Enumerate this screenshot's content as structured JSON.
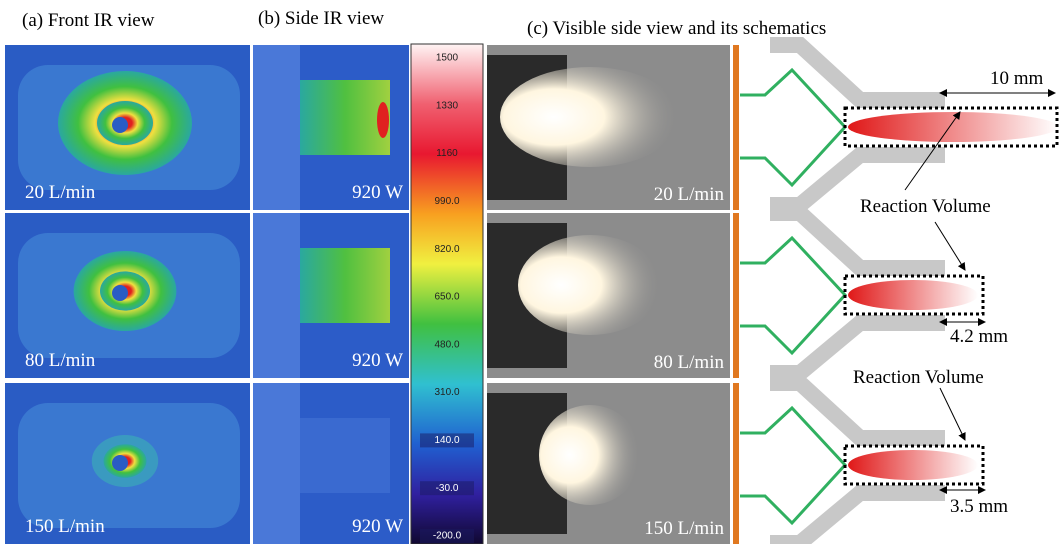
{
  "panels": [
    {
      "title": "(a) Front IR view"
    },
    {
      "title": "(b) Side IR view"
    },
    {
      "title": "(c) Visible side view and its schematics"
    }
  ],
  "front_labels": [
    "20 L/min",
    "80 L/min",
    "150 L/min"
  ],
  "side_labels": [
    "920 W",
    "920 W",
    "920 W"
  ],
  "colorbar_labels": [
    "1500",
    "1330",
    "1160",
    "990.0",
    "820.0",
    "650.0",
    "480.0",
    "310.0",
    "140.0",
    "-30.0",
    "-200.0"
  ],
  "visible_labels": [
    "20 L/min",
    "80 L/min",
    "150 L/min"
  ],
  "schematic": {
    "dimensions": [
      "10 mm",
      "4.2 mm",
      "3.5 mm"
    ],
    "annotations": [
      "Reaction Volume",
      "Reaction Volume"
    ]
  }
}
